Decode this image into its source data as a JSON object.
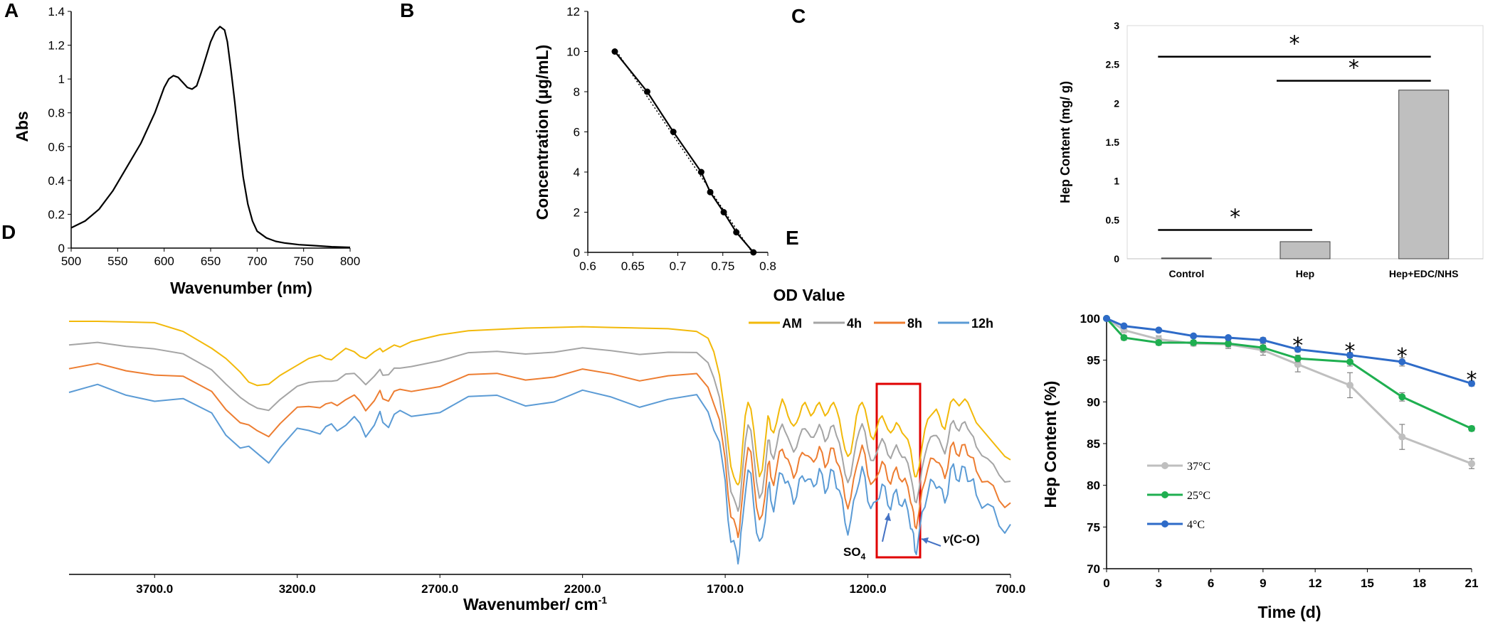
{
  "chart_data": [
    {
      "panel": "A",
      "type": "line",
      "xlabel": "Wavenumber (nm)",
      "ylabel": "Abs",
      "xlim": [
        500,
        800
      ],
      "ylim": [
        0,
        1.4
      ],
      "xticks": [
        "500",
        "550",
        "600",
        "650",
        "700",
        "750",
        "800"
      ],
      "yticks": [
        "0",
        "0.2",
        "0.4",
        "0.6",
        "0.8",
        "1",
        "1.2",
        "1.4"
      ],
      "series": [
        {
          "name": "Abs",
          "color": "#000000",
          "x": [
            500,
            515,
            530,
            545,
            560,
            575,
            590,
            600,
            605,
            610,
            615,
            620,
            625,
            630,
            635,
            640,
            645,
            650,
            655,
            660,
            665,
            668,
            672,
            676,
            680,
            685,
            690,
            695,
            700,
            710,
            720,
            730,
            745,
            760,
            780,
            800
          ],
          "y": [
            0.12,
            0.16,
            0.23,
            0.34,
            0.48,
            0.62,
            0.8,
            0.95,
            1.0,
            1.02,
            1.01,
            0.98,
            0.95,
            0.94,
            0.96,
            1.04,
            1.13,
            1.22,
            1.28,
            1.31,
            1.29,
            1.22,
            1.05,
            0.86,
            0.65,
            0.42,
            0.26,
            0.16,
            0.1,
            0.06,
            0.04,
            0.03,
            0.02,
            0.015,
            0.008,
            0.004
          ]
        }
      ]
    },
    {
      "panel": "B",
      "type": "scatter",
      "xlabel": "OD Value",
      "ylabel": "Concentration (μg/mL)",
      "xlim": [
        0.6,
        0.8
      ],
      "ylim": [
        0,
        12
      ],
      "xticks": [
        "0.6",
        "0.65",
        "0.7",
        "0.75",
        "0.8"
      ],
      "yticks": [
        "0",
        "2",
        "4",
        "6",
        "8",
        "10",
        "12"
      ],
      "series": [
        {
          "name": "measured",
          "color": "#000000",
          "x": [
            0.63,
            0.666,
            0.695,
            0.726,
            0.736,
            0.751,
            0.765,
            0.784
          ],
          "y": [
            10,
            8,
            6,
            4,
            3,
            2,
            1,
            0
          ]
        },
        {
          "name": "fit",
          "color": "#000000",
          "style": "dotted",
          "x": [
            0.63,
            0.784
          ],
          "y": [
            10.15,
            -0.1
          ]
        }
      ]
    },
    {
      "panel": "C",
      "type": "bar",
      "ylabel": "Hep Content (mg/ g)",
      "categories": [
        "Control",
        "Hep",
        "Hep+EDC/NHS"
      ],
      "values": [
        0.01,
        0.22,
        2.17
      ],
      "ylim": [
        0,
        3
      ],
      "yticks": [
        "0",
        "0.5",
        "1",
        "1.5",
        "2",
        "2.5",
        "3"
      ],
      "significance": [
        {
          "from": 0,
          "to": 1,
          "y": 0.37,
          "label": "*"
        },
        {
          "from": 1,
          "to": 2,
          "y": 2.29,
          "label": "*"
        },
        {
          "from": 0,
          "to": 2,
          "y": 2.6,
          "label": "*"
        }
      ]
    },
    {
      "panel": "D",
      "type": "line",
      "xlabel": "Wavenumber/ cm",
      "xlabel_sup": "-1",
      "xlim": [
        4000,
        700
      ],
      "xticks": [
        "3700.0",
        "3200.0",
        "2700.0",
        "2200.0",
        "1700.0",
        "1200.0",
        "700.0"
      ],
      "xtick_values": [
        3700,
        3200,
        2700,
        2200,
        1700,
        1200,
        700
      ],
      "offsets": [
        0,
        0.45,
        0.9,
        1.35
      ],
      "series": [
        {
          "name": "AM",
          "color": "#F2B90A"
        },
        {
          "name": "4h",
          "color": "#A5A5A5"
        },
        {
          "name": "8h",
          "color": "#ED7D31"
        },
        {
          "name": "12h",
          "color": "#5B9BD5"
        }
      ],
      "base_spectrum": {
        "x": [
          4000,
          3900,
          3800,
          3700,
          3600,
          3500,
          3450,
          3400,
          3370,
          3340,
          3300,
          3260,
          3200,
          3160,
          3120,
          3100,
          3080,
          3060,
          3030,
          3000,
          2980,
          2960,
          2930,
          2910,
          2900,
          2880,
          2860,
          2840,
          2800,
          2700,
          2600,
          2500,
          2400,
          2300,
          2200,
          2100,
          2000,
          1900,
          1800,
          1760,
          1740,
          1720,
          1700,
          1690,
          1680,
          1670,
          1660,
          1655,
          1650,
          1645,
          1640,
          1630,
          1620,
          1610,
          1600,
          1590,
          1580,
          1570,
          1560,
          1550,
          1545,
          1540,
          1530,
          1520,
          1510,
          1500,
          1490,
          1480,
          1470,
          1460,
          1450,
          1440,
          1430,
          1420,
          1410,
          1400,
          1390,
          1380,
          1370,
          1360,
          1350,
          1340,
          1330,
          1320,
          1310,
          1300,
          1290,
          1280,
          1270,
          1260,
          1250,
          1240,
          1230,
          1220,
          1210,
          1200,
          1190,
          1180,
          1170,
          1160,
          1150,
          1140,
          1130,
          1120,
          1110,
          1100,
          1090,
          1080,
          1070,
          1060,
          1050,
          1045,
          1040,
          1035,
          1030,
          1020,
          1010,
          1000,
          990,
          980,
          970,
          960,
          950,
          940,
          930,
          920,
          910,
          900,
          890,
          880,
          870,
          860,
          850,
          840,
          830,
          820,
          800,
          780,
          760,
          740,
          720,
          700
        ],
        "y": [
          3.5,
          3.5,
          3.49,
          3.48,
          3.35,
          3.1,
          2.95,
          2.75,
          2.6,
          2.55,
          2.57,
          2.7,
          2.85,
          2.95,
          3.0,
          2.95,
          2.93,
          3.0,
          3.1,
          3.05,
          2.98,
          2.95,
          3.05,
          3.1,
          3.05,
          3.1,
          3.15,
          3.12,
          3.2,
          3.3,
          3.36,
          3.38,
          3.4,
          3.41,
          3.42,
          3.41,
          3.4,
          3.39,
          3.35,
          3.25,
          3.05,
          2.7,
          2.1,
          1.7,
          1.35,
          1.2,
          1.1,
          1.08,
          1.12,
          1.3,
          1.6,
          2.1,
          2.3,
          2.2,
          1.9,
          1.5,
          1.2,
          1.3,
          1.7,
          2.1,
          2.05,
          1.9,
          1.85,
          2.0,
          2.2,
          2.35,
          2.25,
          2.1,
          2.0,
          1.95,
          2.0,
          2.1,
          2.25,
          2.3,
          2.2,
          2.1,
          2.15,
          2.25,
          2.3,
          2.2,
          2.1,
          2.15,
          2.25,
          2.3,
          2.2,
          2.05,
          1.8,
          1.6,
          1.5,
          1.55,
          1.8,
          2.1,
          2.25,
          2.3,
          2.2,
          2.0,
          1.8,
          1.75,
          1.9,
          2.05,
          2.1,
          2.0,
          1.9,
          1.85,
          1.9,
          2.0,
          1.95,
          1.85,
          1.8,
          1.75,
          1.6,
          1.45,
          1.3,
          1.2,
          1.2,
          1.35,
          1.65,
          1.9,
          2.05,
          2.1,
          2.15,
          2.2,
          2.1,
          1.95,
          1.9,
          2.1,
          2.3,
          2.35,
          2.3,
          2.25,
          2.3,
          2.35,
          2.3,
          2.2,
          2.1,
          2.0,
          1.9,
          1.8,
          1.7,
          1.6,
          1.5,
          1.45
        ]
      },
      "annotations": [
        "SO",
        "4",
        "ν",
        "(C-O)"
      ]
    },
    {
      "panel": "E",
      "type": "line",
      "xlabel": "Time (d)",
      "ylabel": "Hep Content (%)",
      "xlim": [
        0,
        21
      ],
      "ylim": [
        70,
        100
      ],
      "xticks": [
        "0",
        "3",
        "6",
        "9",
        "12",
        "15",
        "18",
        "21"
      ],
      "yticks": [
        "70",
        "75",
        "80",
        "85",
        "90",
        "95",
        "100"
      ],
      "x": [
        0,
        1,
        3,
        5,
        7,
        9,
        11,
        14,
        17,
        21
      ],
      "series": [
        {
          "name": "37°C",
          "color": "#BFBFBF",
          "values": [
            100,
            98.6,
            97.5,
            97.0,
            96.9,
            96.2,
            94.5,
            92.0,
            85.8,
            82.6
          ],
          "errors": [
            0,
            0.3,
            0.4,
            0.3,
            0.5,
            0.6,
            0.9,
            1.5,
            1.5,
            0.6
          ]
        },
        {
          "name": "25°C",
          "color": "#1FAF50",
          "values": [
            100,
            97.7,
            97.1,
            97.1,
            97.0,
            96.5,
            95.2,
            94.8,
            90.6,
            86.8
          ],
          "errors": [
            0,
            0.3,
            0.3,
            0.3,
            0.4,
            0.5,
            0.4,
            0.5,
            0.5,
            0.3
          ]
        },
        {
          "name": "4°C",
          "color": "#2E6BC8",
          "values": [
            100,
            99.1,
            98.6,
            97.9,
            97.7,
            97.4,
            96.3,
            95.6,
            94.8,
            92.2
          ],
          "errors": [
            0,
            0.2,
            0.2,
            0.2,
            0.2,
            0.3,
            0.3,
            0.3,
            0.5,
            0.3
          ]
        }
      ],
      "stars_at": [
        11,
        14,
        17,
        21
      ],
      "star": "*"
    }
  ],
  "panels": {
    "a": "A",
    "b": "B",
    "c": "C",
    "d": "D",
    "e": "E"
  }
}
